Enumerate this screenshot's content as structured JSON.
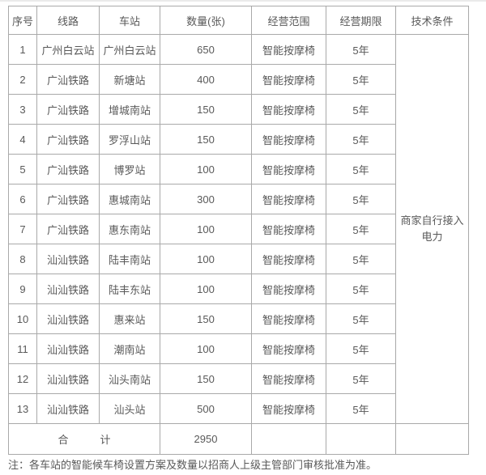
{
  "table": {
    "headers": {
      "no": "序号",
      "line": "线路",
      "station": "车站",
      "qty": "数量(张)",
      "scope": "经营范围",
      "term": "经营期限",
      "tech": "技术条件"
    },
    "rows": [
      {
        "no": "1",
        "line": "广州白云站",
        "station": "广州白云站",
        "qty": "650",
        "scope": "智能按摩椅",
        "term": "5年"
      },
      {
        "no": "2",
        "line": "广汕铁路",
        "station": "新塘站",
        "qty": "400",
        "scope": "智能按摩椅",
        "term": "5年"
      },
      {
        "no": "3",
        "line": "广汕铁路",
        "station": "增城南站",
        "qty": "150",
        "scope": "智能按摩椅",
        "term": "5年"
      },
      {
        "no": "4",
        "line": "广汕铁路",
        "station": "罗浮山站",
        "qty": "150",
        "scope": "智能按摩椅",
        "term": "5年"
      },
      {
        "no": "5",
        "line": "广汕铁路",
        "station": "博罗站",
        "qty": "100",
        "scope": "智能按摩椅",
        "term": "5年"
      },
      {
        "no": "6",
        "line": "广汕铁路",
        "station": "惠城南站",
        "qty": "300",
        "scope": "智能按摩椅",
        "term": "5年"
      },
      {
        "no": "7",
        "line": "广汕铁路",
        "station": "惠东南站",
        "qty": "100",
        "scope": "智能按摩椅",
        "term": "5年"
      },
      {
        "no": "8",
        "line": "汕汕铁路",
        "station": "陆丰南站",
        "qty": "100",
        "scope": "智能按摩椅",
        "term": "5年"
      },
      {
        "no": "9",
        "line": "汕汕铁路",
        "station": "陆丰东站",
        "qty": "100",
        "scope": "智能按摩椅",
        "term": "5年"
      },
      {
        "no": "10",
        "line": "汕汕铁路",
        "station": "惠来站",
        "qty": "150",
        "scope": "智能按摩椅",
        "term": "5年"
      },
      {
        "no": "11",
        "line": "汕汕铁路",
        "station": "潮南站",
        "qty": "100",
        "scope": "智能按摩椅",
        "term": "5年"
      },
      {
        "no": "12",
        "line": "汕汕铁路",
        "station": "汕头南站",
        "qty": "150",
        "scope": "智能按摩椅",
        "term": "5年"
      },
      {
        "no": "13",
        "line": "汕汕铁路",
        "station": "汕头站",
        "qty": "500",
        "scope": "智能按摩椅",
        "term": "5年"
      }
    ],
    "tech_condition": "商家自行接入电力",
    "total": {
      "label": "合　　　计",
      "qty": "2950"
    }
  },
  "note": "注：各车站的智能候车椅设置方案及数量以招商人上级主管部门审核批准为准。",
  "colors": {
    "text": "#595959",
    "border": "#a9a9a9",
    "background": "#ffffff"
  }
}
